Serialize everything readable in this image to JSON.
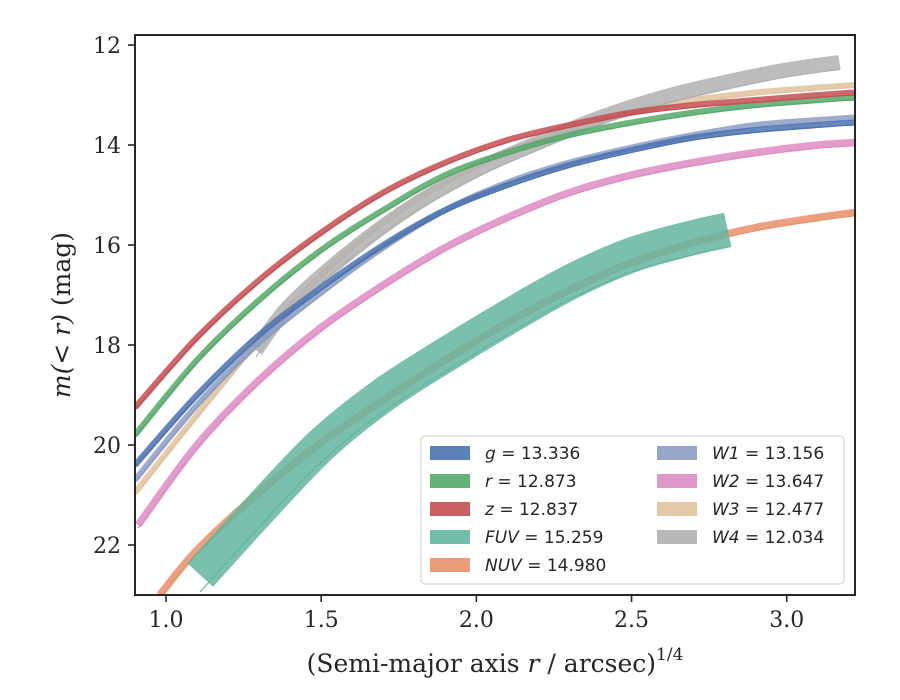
{
  "chart_data": {
    "type": "line",
    "xlabel_main": "(Semi-major axis ",
    "xlabel_var": "r",
    "xlabel_tail": " / arcsec)",
    "xlabel_exp": "1/4",
    "ylabel_main": "m(< r)",
    "ylabel_unit": " (mag)",
    "xlim": [
      0.9,
      3.22
    ],
    "ylim": [
      23.0,
      11.8
    ],
    "y_inverted": true,
    "xticks": [
      1.0,
      1.5,
      2.0,
      2.5,
      3.0
    ],
    "xtick_labels": [
      "1.0",
      "1.5",
      "2.0",
      "2.5",
      "3.0"
    ],
    "yticks": [
      12,
      14,
      16,
      18,
      20,
      22
    ],
    "ytick_labels": [
      "12",
      "14",
      "16",
      "18",
      "20",
      "22"
    ],
    "grid": false,
    "legend_position": "lower-right",
    "series": [
      {
        "name": "g",
        "value": "13.336",
        "color": "#4c72b0",
        "width": 0.12,
        "x": [
          0.9,
          1.1,
          1.3,
          1.5,
          1.7,
          1.9,
          2.1,
          2.3,
          2.5,
          2.7,
          2.9,
          3.1,
          3.22
        ],
        "y": [
          20.4,
          19.0,
          17.8,
          16.85,
          16.0,
          15.3,
          14.8,
          14.4,
          14.1,
          13.85,
          13.7,
          13.6,
          13.55
        ]
      },
      {
        "name": "r",
        "value": "12.873",
        "color": "#55a868",
        "width": 0.12,
        "x": [
          0.9,
          1.1,
          1.3,
          1.5,
          1.7,
          1.9,
          2.1,
          2.3,
          2.5,
          2.7,
          2.9,
          3.1,
          3.22
        ],
        "y": [
          19.8,
          18.3,
          17.1,
          16.1,
          15.3,
          14.6,
          14.15,
          13.8,
          13.55,
          13.35,
          13.2,
          13.1,
          13.05
        ]
      },
      {
        "name": "z",
        "value": "12.837",
        "color": "#c44e52",
        "width": 0.12,
        "x": [
          0.9,
          1.1,
          1.3,
          1.5,
          1.7,
          1.9,
          2.1,
          2.3,
          2.5,
          2.7,
          2.9,
          3.1,
          3.22
        ],
        "y": [
          19.25,
          17.85,
          16.7,
          15.75,
          14.95,
          14.35,
          13.9,
          13.6,
          13.35,
          13.2,
          13.1,
          13.0,
          12.95
        ]
      },
      {
        "name": "FUV",
        "value": "15.259",
        "color": "#64b5a0",
        "width": 0.7,
        "x": [
          1.11,
          1.3,
          1.5,
          1.7,
          1.9,
          2.1,
          2.3,
          2.5,
          2.7,
          2.81
        ],
        "y": [
          22.6,
          21.3,
          20.0,
          19.0,
          18.2,
          17.45,
          16.75,
          16.2,
          15.85,
          15.7
        ]
      },
      {
        "name": "NUV",
        "value": "14.980",
        "color": "#e8916a",
        "width": 0.15,
        "x": [
          0.98,
          1.1,
          1.3,
          1.5,
          1.7,
          1.9,
          2.1,
          2.3,
          2.5,
          2.7,
          2.9,
          3.1,
          3.22
        ],
        "y": [
          23.0,
          22.1,
          20.95,
          19.95,
          19.1,
          18.3,
          17.55,
          16.9,
          16.35,
          15.95,
          15.65,
          15.45,
          15.35
        ]
      },
      {
        "name": "W1",
        "value": "13.156",
        "color": "#8c9dc3",
        "width": 0.12,
        "x": [
          0.9,
          1.1,
          1.3,
          1.5,
          1.7,
          1.9,
          2.1,
          2.3,
          2.5,
          2.7,
          2.9,
          3.1,
          3.22
        ],
        "y": [
          20.7,
          19.2,
          17.95,
          16.95,
          16.05,
          15.3,
          14.75,
          14.35,
          14.05,
          13.8,
          13.6,
          13.5,
          13.45
        ]
      },
      {
        "name": "W2",
        "value": "13.647",
        "color": "#dd8cc4",
        "width": 0.15,
        "x": [
          0.91,
          1.1,
          1.3,
          1.5,
          1.7,
          1.9,
          2.1,
          2.3,
          2.5,
          2.7,
          2.9,
          3.1,
          3.22
        ],
        "y": [
          21.6,
          20.0,
          18.7,
          17.65,
          16.8,
          16.05,
          15.45,
          14.95,
          14.6,
          14.35,
          14.15,
          14.0,
          13.95
        ]
      },
      {
        "name": "W3",
        "value": "12.477",
        "color": "#e0c29e",
        "width": 0.12,
        "x": [
          0.9,
          1.1,
          1.3,
          1.5,
          1.7,
          1.9,
          2.1,
          2.3,
          2.5,
          2.7,
          2.9,
          3.1,
          3.22
        ],
        "y": [
          20.95,
          19.4,
          17.9,
          16.6,
          15.55,
          14.75,
          14.15,
          13.7,
          13.35,
          13.1,
          12.95,
          12.85,
          12.8
        ]
      },
      {
        "name": "W4",
        "value": "12.034",
        "color": "#b0b0b0",
        "width": 0.3,
        "x": [
          1.29,
          1.4,
          1.6,
          1.8,
          2.0,
          2.2,
          2.4,
          2.6,
          2.8,
          3.0,
          3.17
        ],
        "y": [
          18.1,
          17.2,
          16.1,
          15.2,
          14.5,
          13.95,
          13.45,
          13.05,
          12.75,
          12.5,
          12.35
        ]
      }
    ],
    "legend_order_col1": [
      0,
      1,
      2,
      3,
      4
    ],
    "legend_order_col2": [
      5,
      6,
      7,
      8
    ]
  }
}
